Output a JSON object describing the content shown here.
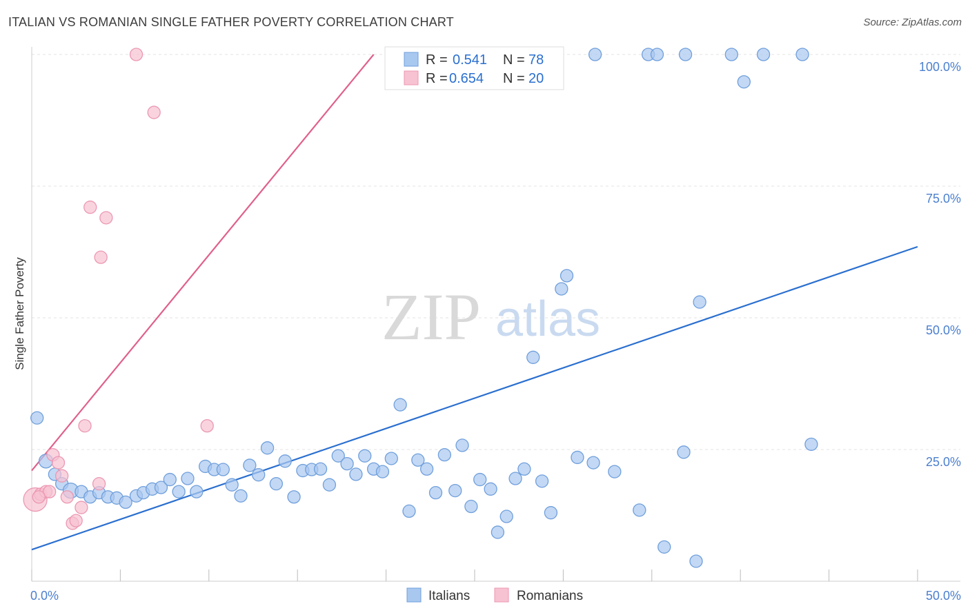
{
  "title": "ITALIAN VS ROMANIAN SINGLE FATHER POVERTY CORRELATION CHART",
  "source": "Source: ZipAtlas.com",
  "colors": {
    "italian_fill": "#a9c8f0",
    "italian_stroke": "#6f9fdc",
    "italian_line": "#2a6fcf",
    "romanian_fill": "#f7c2d2",
    "romanian_stroke": "#ec97b2",
    "romanian_line": "#e0608a",
    "tick_text": "#4a7fcf"
  },
  "legend": {
    "italian": {
      "r_label": "R = ",
      "r_value": "0.541",
      "n_label": "N = ",
      "n_value": "78"
    },
    "romanian": {
      "r_label": "R = ",
      "r_value": "0.654",
      "n_label": "N = ",
      "n_value": "20"
    }
  },
  "bottom_legend": {
    "italian": "Italians",
    "romanian": "Romanians"
  },
  "watermark": {
    "zip": "ZIP",
    "atlas": "atlas"
  },
  "chart_data": {
    "type": "scatter",
    "title": "ITALIAN VS ROMANIAN SINGLE FATHER POVERTY CORRELATION CHART",
    "xlabel": "",
    "ylabel": "Single Father Poverty",
    "xlim": [
      0,
      50
    ],
    "ylim": [
      0,
      100
    ],
    "x_tick_labels": [
      "0.0%",
      "50.0%"
    ],
    "y_ticks": [
      25,
      50,
      75,
      100
    ],
    "y_tick_labels": [
      "25.0%",
      "50.0%",
      "75.0%",
      "100.0%"
    ],
    "grid": true,
    "series": [
      {
        "name": "Italians",
        "points": [
          [
            0.3,
            31.0
          ],
          [
            0.8,
            22.8
          ],
          [
            1.3,
            20.3
          ],
          [
            1.7,
            18.5
          ],
          [
            2.2,
            17.2
          ],
          [
            2.8,
            17.0
          ],
          [
            3.3,
            16.0
          ],
          [
            3.8,
            16.8
          ],
          [
            4.3,
            16.0
          ],
          [
            4.8,
            15.8
          ],
          [
            5.3,
            15.0
          ],
          [
            5.9,
            16.2
          ],
          [
            6.3,
            16.8
          ],
          [
            6.8,
            17.5
          ],
          [
            7.3,
            17.8
          ],
          [
            7.8,
            19.3
          ],
          [
            8.3,
            17.0
          ],
          [
            8.8,
            19.5
          ],
          [
            9.3,
            17.0
          ],
          [
            9.8,
            21.8
          ],
          [
            10.3,
            21.2
          ],
          [
            10.8,
            21.2
          ],
          [
            11.3,
            18.3
          ],
          [
            11.8,
            16.2
          ],
          [
            12.3,
            22.0
          ],
          [
            12.8,
            20.2
          ],
          [
            13.3,
            25.3
          ],
          [
            13.8,
            18.5
          ],
          [
            14.3,
            22.8
          ],
          [
            14.8,
            16.0
          ],
          [
            15.3,
            21.0
          ],
          [
            15.8,
            21.2
          ],
          [
            16.3,
            21.3
          ],
          [
            16.8,
            18.3
          ],
          [
            17.3,
            23.8
          ],
          [
            17.8,
            22.3
          ],
          [
            18.3,
            20.3
          ],
          [
            18.8,
            23.8
          ],
          [
            19.3,
            21.3
          ],
          [
            19.8,
            20.8
          ],
          [
            20.3,
            23.3
          ],
          [
            20.8,
            33.5
          ],
          [
            21.3,
            13.3
          ],
          [
            21.8,
            23.0
          ],
          [
            22.3,
            21.3
          ],
          [
            22.8,
            16.8
          ],
          [
            23.3,
            24.0
          ],
          [
            23.9,
            17.2
          ],
          [
            24.3,
            25.8
          ],
          [
            24.8,
            14.2
          ],
          [
            25.3,
            19.3
          ],
          [
            25.9,
            17.5
          ],
          [
            26.3,
            9.3
          ],
          [
            26.8,
            12.3
          ],
          [
            27.3,
            19.5
          ],
          [
            27.8,
            21.3
          ],
          [
            28.3,
            42.5
          ],
          [
            28.8,
            19.0
          ],
          [
            29.3,
            13.0
          ],
          [
            29.9,
            55.5
          ],
          [
            30.2,
            58.0
          ],
          [
            30.8,
            23.5
          ],
          [
            31.7,
            22.5
          ],
          [
            31.8,
            100.0
          ],
          [
            32.9,
            20.8
          ],
          [
            34.3,
            13.5
          ],
          [
            34.8,
            100.0
          ],
          [
            35.3,
            100.0
          ],
          [
            35.7,
            6.5
          ],
          [
            36.9,
            100.0
          ],
          [
            36.8,
            24.5
          ],
          [
            37.5,
            3.8
          ],
          [
            37.7,
            53.0
          ],
          [
            39.5,
            100.0
          ],
          [
            40.2,
            94.8
          ],
          [
            41.3,
            100.0
          ],
          [
            43.5,
            100.0
          ],
          [
            44.0,
            26.0
          ]
        ]
      },
      {
        "name": "Romanians",
        "points": [
          [
            0.2,
            15.5
          ],
          [
            0.5,
            16.5
          ],
          [
            0.8,
            17.0
          ],
          [
            1.0,
            17.0
          ],
          [
            1.2,
            24.0
          ],
          [
            1.5,
            22.5
          ],
          [
            1.7,
            20.0
          ],
          [
            2.0,
            16.0
          ],
          [
            2.3,
            11.0
          ],
          [
            2.5,
            11.5
          ],
          [
            2.8,
            14.0
          ],
          [
            3.0,
            29.5
          ],
          [
            3.3,
            71.0
          ],
          [
            3.8,
            18.5
          ],
          [
            3.9,
            61.5
          ],
          [
            4.2,
            69.0
          ],
          [
            5.9,
            100.0
          ],
          [
            6.9,
            89.0
          ],
          [
            9.9,
            29.5
          ],
          [
            0.4,
            16.0
          ]
        ]
      }
    ],
    "trend_lines": [
      {
        "series": "Italians",
        "x": [
          0,
          50
        ],
        "y": [
          6.0,
          63.5
        ]
      },
      {
        "series": "Romanians",
        "x": [
          0,
          19.3
        ],
        "y": [
          21.0,
          100.0
        ]
      }
    ],
    "stats": {
      "Italians": {
        "R": 0.541,
        "N": 78
      },
      "Romanians": {
        "R": 0.654,
        "N": 20
      }
    }
  }
}
